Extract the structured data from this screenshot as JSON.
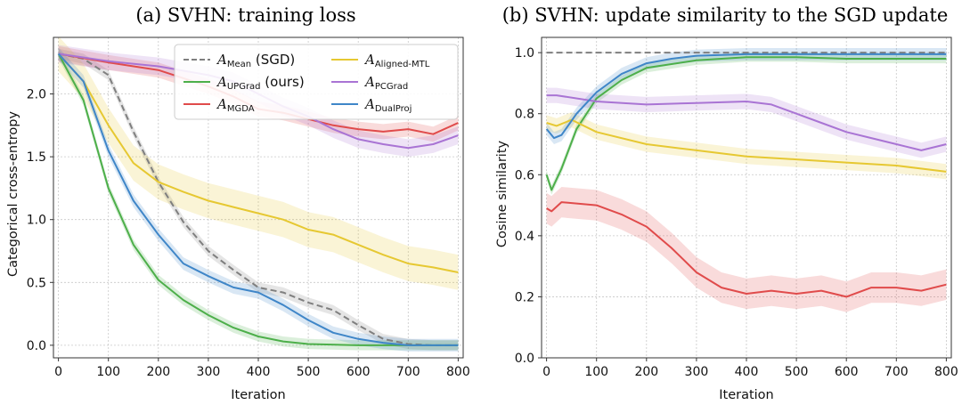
{
  "chart_data": [
    {
      "type": "line",
      "title": "(a) SVHN: training loss",
      "xlabel": "Iteration",
      "ylabel": "Categorical cross-entropy",
      "xlim": [
        -10,
        810
      ],
      "ylim": [
        -0.1,
        2.45
      ],
      "xticks": [
        "0",
        "100",
        "200",
        "300",
        "400",
        "500",
        "600",
        "700",
        "800"
      ],
      "yticks": [
        "0.0",
        "0.5",
        "1.0",
        "1.5",
        "2.0"
      ],
      "grid": true,
      "legend_position": "top-right",
      "legend": [
        {
          "symbol": "A",
          "sub": "Mean",
          "suffix": " (SGD)",
          "color": "#7f7f7f",
          "dashed": true
        },
        {
          "symbol": "A",
          "sub": "UPGrad",
          "suffix": " (ours)",
          "color": "#4daf4a",
          "dashed": false
        },
        {
          "symbol": "A",
          "sub": "MGDA",
          "suffix": "",
          "color": "#e04b4b",
          "dashed": false
        },
        {
          "symbol": "A",
          "sub": "Aligned-MTL",
          "suffix": "",
          "color": "#e6c832",
          "dashed": false
        },
        {
          "symbol": "A",
          "sub": "PCGrad",
          "suffix": "",
          "color": "#a974d4",
          "dashed": false
        },
        {
          "symbol": "A",
          "sub": "DualProj",
          "suffix": "",
          "color": "#3f86c8",
          "dashed": false
        }
      ],
      "series": [
        {
          "name": "A Mean (SGD)",
          "color": "#7f7f7f",
          "dashed": true,
          "band": 0.04,
          "points": [
            [
              0,
              2.32
            ],
            [
              50,
              2.28
            ],
            [
              100,
              2.15
            ],
            [
              150,
              1.7
            ],
            [
              200,
              1.3
            ],
            [
              250,
              0.98
            ],
            [
              300,
              0.75
            ],
            [
              350,
              0.6
            ],
            [
              400,
              0.46
            ],
            [
              450,
              0.42
            ],
            [
              500,
              0.34
            ],
            [
              550,
              0.28
            ],
            [
              600,
              0.16
            ],
            [
              650,
              0.05
            ],
            [
              700,
              0.01
            ],
            [
              750,
              0.0
            ],
            [
              800,
              0.0
            ]
          ]
        },
        {
          "name": "A UPGrad (ours)",
          "color": "#4daf4a",
          "dashed": false,
          "band": 0.04,
          "points": [
            [
              0,
              2.32
            ],
            [
              50,
              1.95
            ],
            [
              100,
              1.25
            ],
            [
              150,
              0.8
            ],
            [
              200,
              0.52
            ],
            [
              250,
              0.36
            ],
            [
              300,
              0.24
            ],
            [
              350,
              0.14
            ],
            [
              400,
              0.07
            ],
            [
              450,
              0.03
            ],
            [
              500,
              0.01
            ],
            [
              600,
              0.0
            ],
            [
              800,
              0.0
            ]
          ]
        },
        {
          "name": "A MGDA",
          "color": "#e04b4b",
          "dashed": false,
          "band": 0.06,
          "points": [
            [
              0,
              2.32
            ],
            [
              100,
              2.25
            ],
            [
              200,
              2.19
            ],
            [
              300,
              2.06
            ],
            [
              350,
              1.98
            ],
            [
              400,
              1.88
            ],
            [
              450,
              1.85
            ],
            [
              500,
              1.8
            ],
            [
              550,
              1.75
            ],
            [
              600,
              1.72
            ],
            [
              650,
              1.7
            ],
            [
              700,
              1.72
            ],
            [
              750,
              1.68
            ],
            [
              800,
              1.77
            ]
          ]
        },
        {
          "name": "A Aligned-MTL",
          "color": "#e6c832",
          "dashed": false,
          "band": 0.14,
          "points": [
            [
              0,
              2.32
            ],
            [
              50,
              2.1
            ],
            [
              100,
              1.75
            ],
            [
              150,
              1.45
            ],
            [
              200,
              1.3
            ],
            [
              250,
              1.22
            ],
            [
              300,
              1.15
            ],
            [
              350,
              1.1
            ],
            [
              400,
              1.05
            ],
            [
              450,
              1.0
            ],
            [
              500,
              0.92
            ],
            [
              550,
              0.88
            ],
            [
              600,
              0.8
            ],
            [
              650,
              0.72
            ],
            [
              700,
              0.65
            ],
            [
              750,
              0.62
            ],
            [
              800,
              0.58
            ]
          ]
        },
        {
          "name": "A PCGrad",
          "color": "#a974d4",
          "dashed": false,
          "band": 0.07,
          "points": [
            [
              0,
              2.32
            ],
            [
              100,
              2.26
            ],
            [
              200,
              2.22
            ],
            [
              300,
              2.15
            ],
            [
              350,
              2.1
            ],
            [
              400,
              2.0
            ],
            [
              450,
              1.9
            ],
            [
              500,
              1.82
            ],
            [
              550,
              1.72
            ],
            [
              600,
              1.64
            ],
            [
              650,
              1.6
            ],
            [
              700,
              1.57
            ],
            [
              750,
              1.6
            ],
            [
              800,
              1.67
            ]
          ]
        },
        {
          "name": "A DualProj",
          "color": "#3f86c8",
          "dashed": false,
          "band": 0.05,
          "points": [
            [
              0,
              2.32
            ],
            [
              50,
              2.1
            ],
            [
              100,
              1.55
            ],
            [
              150,
              1.15
            ],
            [
              200,
              0.88
            ],
            [
              250,
              0.65
            ],
            [
              300,
              0.55
            ],
            [
              350,
              0.46
            ],
            [
              400,
              0.42
            ],
            [
              450,
              0.32
            ],
            [
              500,
              0.2
            ],
            [
              550,
              0.1
            ],
            [
              600,
              0.05
            ],
            [
              650,
              0.02
            ],
            [
              700,
              0.0
            ],
            [
              800,
              0.0
            ]
          ]
        }
      ]
    },
    {
      "type": "line",
      "title": "(b) SVHN: update similarity to the SGD update",
      "xlabel": "Iteration",
      "ylabel": "Cosine similarity",
      "xlim": [
        -10,
        810
      ],
      "ylim": [
        0.0,
        1.05
      ],
      "xticks": [
        "0",
        "100",
        "200",
        "300",
        "400",
        "500",
        "600",
        "700",
        "800"
      ],
      "yticks": [
        "0.0",
        "0.2",
        "0.4",
        "0.6",
        "0.8",
        "1.0"
      ],
      "grid": true,
      "series": [
        {
          "name": "A Mean (SGD)",
          "color": "#7f7f7f",
          "dashed": true,
          "band": 0.0,
          "points": [
            [
              0,
              1.0
            ],
            [
              800,
              1.0
            ]
          ]
        },
        {
          "name": "A UPGrad (ours)",
          "color": "#4daf4a",
          "dashed": false,
          "band": 0.015,
          "points": [
            [
              0,
              0.6
            ],
            [
              10,
              0.55
            ],
            [
              30,
              0.62
            ],
            [
              60,
              0.75
            ],
            [
              100,
              0.85
            ],
            [
              150,
              0.91
            ],
            [
              200,
              0.95
            ],
            [
              300,
              0.975
            ],
            [
              400,
              0.985
            ],
            [
              500,
              0.985
            ],
            [
              600,
              0.98
            ],
            [
              700,
              0.98
            ],
            [
              800,
              0.98
            ]
          ]
        },
        {
          "name": "A MGDA",
          "color": "#e04b4b",
          "dashed": false,
          "band": 0.05,
          "points": [
            [
              0,
              0.49
            ],
            [
              10,
              0.48
            ],
            [
              30,
              0.51
            ],
            [
              100,
              0.5
            ],
            [
              150,
              0.47
            ],
            [
              200,
              0.43
            ],
            [
              250,
              0.36
            ],
            [
              300,
              0.28
            ],
            [
              350,
              0.23
            ],
            [
              400,
              0.21
            ],
            [
              450,
              0.22
            ],
            [
              500,
              0.21
            ],
            [
              550,
              0.22
            ],
            [
              600,
              0.2
            ],
            [
              650,
              0.23
            ],
            [
              700,
              0.23
            ],
            [
              750,
              0.22
            ],
            [
              800,
              0.24
            ]
          ]
        },
        {
          "name": "A Aligned-MTL",
          "color": "#e6c832",
          "dashed": false,
          "band": 0.025,
          "points": [
            [
              0,
              0.77
            ],
            [
              20,
              0.76
            ],
            [
              50,
              0.78
            ],
            [
              100,
              0.74
            ],
            [
              200,
              0.7
            ],
            [
              300,
              0.68
            ],
            [
              400,
              0.66
            ],
            [
              500,
              0.65
            ],
            [
              600,
              0.64
            ],
            [
              700,
              0.63
            ],
            [
              800,
              0.61
            ]
          ]
        },
        {
          "name": "A PCGrad",
          "color": "#a974d4",
          "dashed": false,
          "band": 0.025,
          "points": [
            [
              0,
              0.86
            ],
            [
              20,
              0.86
            ],
            [
              100,
              0.84
            ],
            [
              200,
              0.83
            ],
            [
              300,
              0.835
            ],
            [
              400,
              0.84
            ],
            [
              450,
              0.83
            ],
            [
              500,
              0.8
            ],
            [
              550,
              0.77
            ],
            [
              600,
              0.74
            ],
            [
              650,
              0.72
            ],
            [
              700,
              0.7
            ],
            [
              750,
              0.68
            ],
            [
              800,
              0.7
            ]
          ]
        },
        {
          "name": "A DualProj",
          "color": "#3f86c8",
          "dashed": false,
          "band": 0.02,
          "points": [
            [
              0,
              0.75
            ],
            [
              15,
              0.72
            ],
            [
              30,
              0.73
            ],
            [
              60,
              0.8
            ],
            [
              100,
              0.87
            ],
            [
              150,
              0.93
            ],
            [
              200,
              0.965
            ],
            [
              250,
              0.98
            ],
            [
              300,
              0.99
            ],
            [
              400,
              0.995
            ],
            [
              500,
              0.995
            ],
            [
              600,
              0.995
            ],
            [
              700,
              0.995
            ],
            [
              800,
              0.995
            ]
          ]
        }
      ]
    }
  ]
}
